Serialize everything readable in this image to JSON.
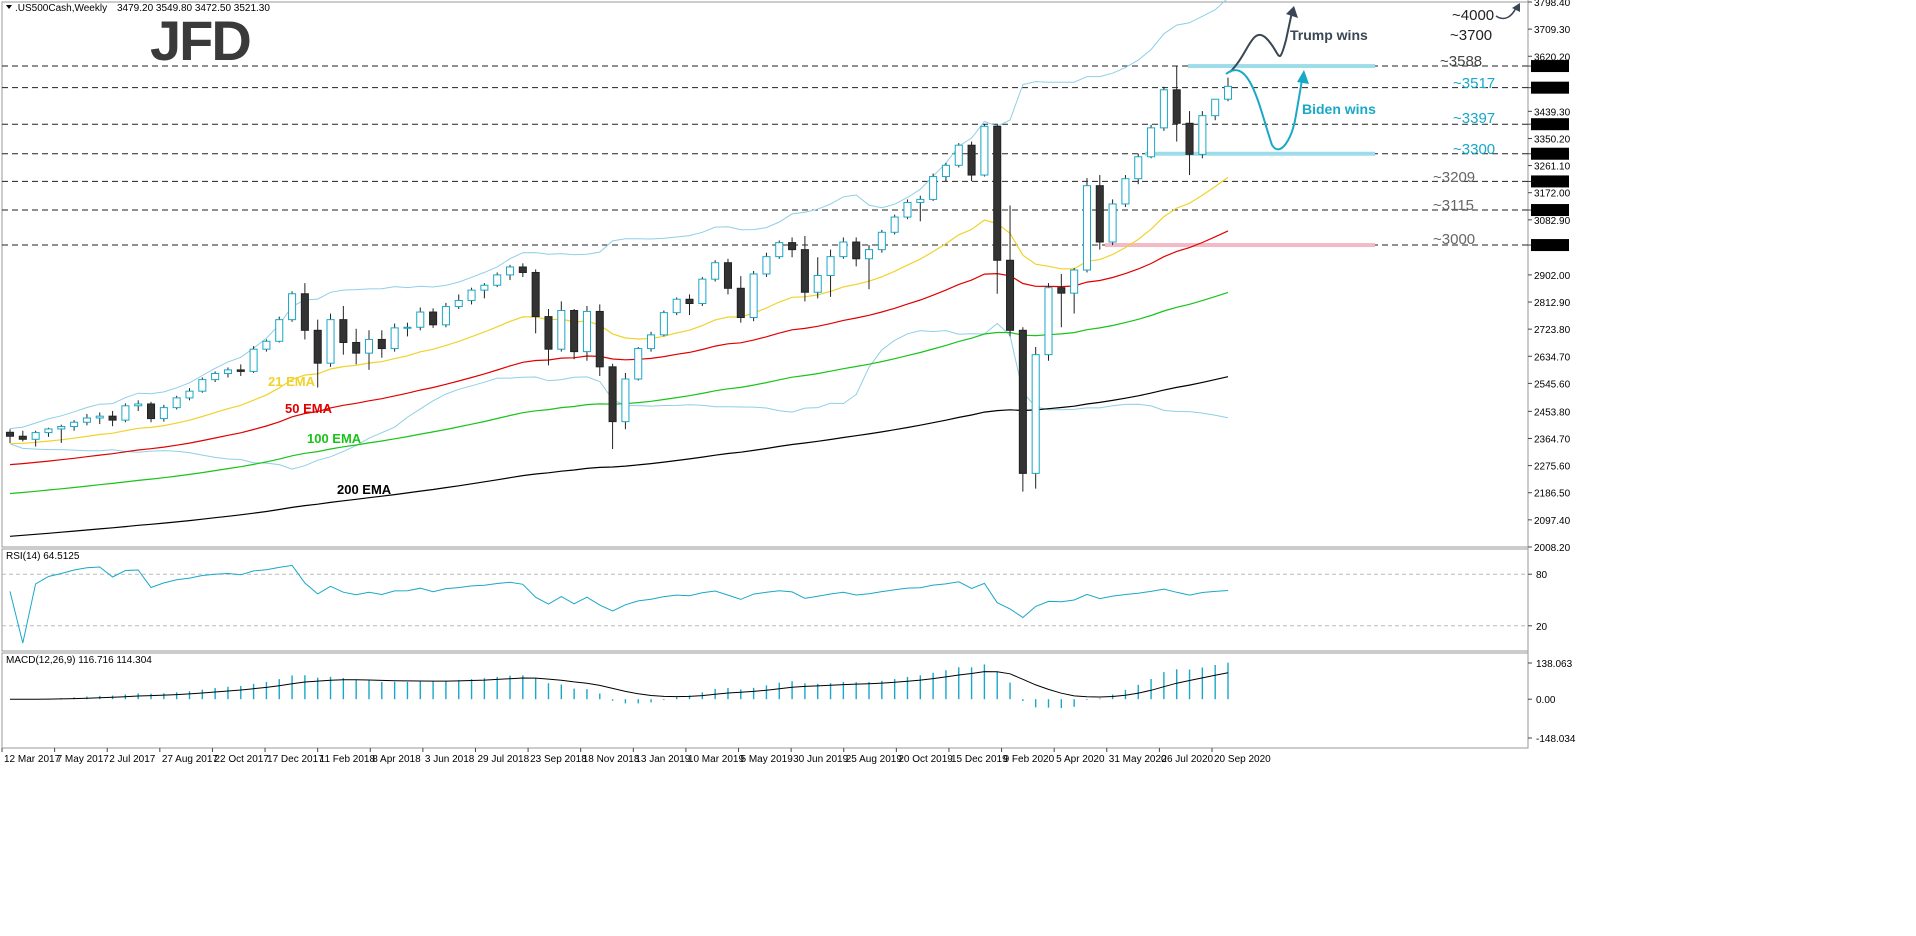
{
  "header": {
    "symbol": ".US500Cash,Weekly",
    "ohlc": "3479.20 3549.80 3472.50 3521.30"
  },
  "logo": "JFD",
  "chart_data": [
    {
      "type": "candlestick",
      "panel": "price",
      "title": ".US500Cash,Weekly",
      "ylim": [
        2008.2,
        3798.4
      ],
      "y_ticks": [
        "3798.40",
        "3709.30",
        "3620.20",
        "3588.00",
        "3517.00",
        "3439.30",
        "3397.00",
        "3350.20",
        "3300.00",
        "3261.10",
        "3209.00",
        "3172.00",
        "3115.00",
        "3082.90",
        "3000.00",
        "2902.00",
        "2812.90",
        "2723.80",
        "2634.70",
        "2545.60",
        "2453.80",
        "2364.70",
        "2275.60",
        "2186.50",
        "2097.40",
        "2008.20"
      ],
      "highlighted_ticks": [
        "3588.00",
        "3517.00",
        "3397.00",
        "3300.00",
        "3209.00",
        "3115.00",
        "3000.00"
      ],
      "x_labels": [
        "12 Mar 2017",
        "7 May 2017",
        "2 Jul 2017",
        "27 Aug 2017",
        "22 Oct 2017",
        "17 Dec 2017",
        "11 Feb 2018",
        "8 Apr 2018",
        "3 Jun 2018",
        "29 Jul 2018",
        "23 Sep 2018",
        "18 Nov 2018",
        "13 Jan 2019",
        "10 Mar 2019",
        "5 May 2019",
        "30 Jun 2019",
        "25 Aug 2019",
        "20 Oct 2019",
        "15 Dec 2019",
        "9 Feb 2020",
        "5 Apr 2020",
        "31 May 2020",
        "26 Jul 2020",
        "20 Sep 2020"
      ],
      "levels": [
        {
          "label": "~4000",
          "value": 3798,
          "color": "#222222"
        },
        {
          "label": "~3700",
          "value": 3700,
          "color": "#222222"
        },
        {
          "label": "~3588",
          "value": 3588,
          "color": "#444444"
        },
        {
          "label": "~3517",
          "value": 3517,
          "color": "#18a8c8"
        },
        {
          "label": "~3397",
          "value": 3397,
          "color": "#18a8c8"
        },
        {
          "label": "~3300",
          "value": 3300,
          "color": "#18a8c8"
        },
        {
          "label": "~3209",
          "value": 3209,
          "color": "#666666"
        },
        {
          "label": "~3115",
          "value": 3115,
          "color": "#666666"
        },
        {
          "label": "~3000",
          "value": 3000,
          "color": "#666666"
        }
      ],
      "candles": [
        {
          "x": "2017-03-12",
          "o": 2385,
          "h": 2395,
          "l": 2350,
          "c": 2372
        },
        {
          "x": "2017-03-26",
          "o": 2372,
          "h": 2390,
          "l": 2355,
          "c": 2362
        },
        {
          "x": "2017-04-09",
          "o": 2362,
          "h": 2390,
          "l": 2338,
          "c": 2384
        },
        {
          "x": "2017-04-23",
          "o": 2384,
          "h": 2400,
          "l": 2370,
          "c": 2396
        },
        {
          "x": "2017-05-07",
          "o": 2396,
          "h": 2410,
          "l": 2350,
          "c": 2404
        },
        {
          "x": "2017-05-21",
          "o": 2404,
          "h": 2425,
          "l": 2390,
          "c": 2418
        },
        {
          "x": "2017-06-04",
          "o": 2418,
          "h": 2445,
          "l": 2408,
          "c": 2432
        },
        {
          "x": "2017-06-18",
          "o": 2432,
          "h": 2450,
          "l": 2412,
          "c": 2438
        },
        {
          "x": "2017-07-02",
          "o": 2438,
          "h": 2455,
          "l": 2405,
          "c": 2425
        },
        {
          "x": "2017-07-16",
          "o": 2425,
          "h": 2480,
          "l": 2418,
          "c": 2472
        },
        {
          "x": "2017-07-30",
          "o": 2472,
          "h": 2490,
          "l": 2455,
          "c": 2478
        },
        {
          "x": "2017-08-13",
          "o": 2478,
          "h": 2485,
          "l": 2418,
          "c": 2430
        },
        {
          "x": "2017-08-27",
          "o": 2430,
          "h": 2475,
          "l": 2420,
          "c": 2466
        },
        {
          "x": "2017-09-10",
          "o": 2466,
          "h": 2505,
          "l": 2460,
          "c": 2498
        },
        {
          "x": "2017-09-24",
          "o": 2498,
          "h": 2530,
          "l": 2490,
          "c": 2520
        },
        {
          "x": "2017-10-08",
          "o": 2520,
          "h": 2565,
          "l": 2515,
          "c": 2558
        },
        {
          "x": "2017-10-22",
          "o": 2558,
          "h": 2585,
          "l": 2550,
          "c": 2578
        },
        {
          "x": "2017-11-05",
          "o": 2578,
          "h": 2598,
          "l": 2565,
          "c": 2590
        },
        {
          "x": "2017-11-19",
          "o": 2590,
          "h": 2608,
          "l": 2570,
          "c": 2585
        },
        {
          "x": "2017-12-03",
          "o": 2585,
          "h": 2668,
          "l": 2580,
          "c": 2658
        },
        {
          "x": "2017-12-17",
          "o": 2658,
          "h": 2690,
          "l": 2650,
          "c": 2684
        },
        {
          "x": "2017-12-31",
          "o": 2684,
          "h": 2765,
          "l": 2680,
          "c": 2755
        },
        {
          "x": "2018-01-14",
          "o": 2755,
          "h": 2848,
          "l": 2748,
          "c": 2840
        },
        {
          "x": "2018-01-28",
          "o": 2840,
          "h": 2875,
          "l": 2690,
          "c": 2720
        },
        {
          "x": "2018-02-11",
          "o": 2720,
          "h": 2755,
          "l": 2532,
          "c": 2612
        },
        {
          "x": "2018-02-25",
          "o": 2612,
          "h": 2775,
          "l": 2600,
          "c": 2755
        },
        {
          "x": "2018-03-11",
          "o": 2755,
          "h": 2800,
          "l": 2640,
          "c": 2680
        },
        {
          "x": "2018-03-25",
          "o": 2680,
          "h": 2725,
          "l": 2608,
          "c": 2645
        },
        {
          "x": "2018-04-08",
          "o": 2645,
          "h": 2720,
          "l": 2590,
          "c": 2690
        },
        {
          "x": "2018-04-22",
          "o": 2690,
          "h": 2720,
          "l": 2630,
          "c": 2660
        },
        {
          "x": "2018-05-06",
          "o": 2660,
          "h": 2742,
          "l": 2650,
          "c": 2728
        },
        {
          "x": "2018-05-20",
          "o": 2728,
          "h": 2745,
          "l": 2700,
          "c": 2730
        },
        {
          "x": "2018-06-03",
          "o": 2730,
          "h": 2795,
          "l": 2720,
          "c": 2780
        },
        {
          "x": "2018-06-17",
          "o": 2780,
          "h": 2792,
          "l": 2728,
          "c": 2738
        },
        {
          "x": "2018-07-01",
          "o": 2738,
          "h": 2810,
          "l": 2730,
          "c": 2798
        },
        {
          "x": "2018-07-15",
          "o": 2798,
          "h": 2838,
          "l": 2790,
          "c": 2818
        },
        {
          "x": "2018-07-29",
          "o": 2818,
          "h": 2860,
          "l": 2805,
          "c": 2852
        },
        {
          "x": "2018-08-12",
          "o": 2852,
          "h": 2875,
          "l": 2825,
          "c": 2868
        },
        {
          "x": "2018-08-26",
          "o": 2868,
          "h": 2910,
          "l": 2862,
          "c": 2902
        },
        {
          "x": "2018-09-09",
          "o": 2902,
          "h": 2935,
          "l": 2885,
          "c": 2928
        },
        {
          "x": "2018-09-23",
          "o": 2928,
          "h": 2940,
          "l": 2895,
          "c": 2910
        },
        {
          "x": "2018-10-07",
          "o": 2910,
          "h": 2920,
          "l": 2710,
          "c": 2765
        },
        {
          "x": "2018-10-21",
          "o": 2765,
          "h": 2790,
          "l": 2605,
          "c": 2658
        },
        {
          "x": "2018-11-04",
          "o": 2658,
          "h": 2815,
          "l": 2650,
          "c": 2785
        },
        {
          "x": "2018-11-18",
          "o": 2785,
          "h": 2790,
          "l": 2625,
          "c": 2650
        },
        {
          "x": "2018-12-02",
          "o": 2650,
          "h": 2800,
          "l": 2620,
          "c": 2782
        },
        {
          "x": "2018-12-16",
          "o": 2782,
          "h": 2805,
          "l": 2570,
          "c": 2600
        },
        {
          "x": "2018-12-30",
          "o": 2600,
          "h": 2610,
          "l": 2330,
          "c": 2420
        },
        {
          "x": "2019-01-13",
          "o": 2420,
          "h": 2580,
          "l": 2395,
          "c": 2560
        },
        {
          "x": "2019-01-27",
          "o": 2560,
          "h": 2665,
          "l": 2555,
          "c": 2660
        },
        {
          "x": "2019-02-10",
          "o": 2660,
          "h": 2715,
          "l": 2650,
          "c": 2705
        },
        {
          "x": "2019-02-24",
          "o": 2705,
          "h": 2785,
          "l": 2700,
          "c": 2778
        },
        {
          "x": "2019-03-10",
          "o": 2778,
          "h": 2828,
          "l": 2770,
          "c": 2822
        },
        {
          "x": "2019-03-24",
          "o": 2822,
          "h": 2838,
          "l": 2770,
          "c": 2808
        },
        {
          "x": "2019-04-07",
          "o": 2808,
          "h": 2895,
          "l": 2800,
          "c": 2888
        },
        {
          "x": "2019-04-21",
          "o": 2888,
          "h": 2950,
          "l": 2880,
          "c": 2942
        },
        {
          "x": "2019-05-05",
          "o": 2942,
          "h": 2955,
          "l": 2838,
          "c": 2858
        },
        {
          "x": "2019-05-19",
          "o": 2858,
          "h": 2898,
          "l": 2745,
          "c": 2762
        },
        {
          "x": "2019-06-02",
          "o": 2762,
          "h": 2915,
          "l": 2750,
          "c": 2905
        },
        {
          "x": "2019-06-16",
          "o": 2905,
          "h": 2975,
          "l": 2895,
          "c": 2962
        },
        {
          "x": "2019-06-30",
          "o": 2962,
          "h": 3015,
          "l": 2955,
          "c": 3008
        },
        {
          "x": "2019-07-14",
          "o": 3008,
          "h": 3025,
          "l": 2960,
          "c": 2985
        },
        {
          "x": "2019-07-28",
          "o": 2985,
          "h": 3030,
          "l": 2815,
          "c": 2845
        },
        {
          "x": "2019-08-11",
          "o": 2845,
          "h": 2960,
          "l": 2825,
          "c": 2900
        },
        {
          "x": "2019-08-25",
          "o": 2900,
          "h": 2985,
          "l": 2830,
          "c": 2962
        },
        {
          "x": "2019-09-08",
          "o": 2962,
          "h": 3025,
          "l": 2955,
          "c": 3010
        },
        {
          "x": "2019-09-22",
          "o": 3010,
          "h": 3025,
          "l": 2930,
          "c": 2955
        },
        {
          "x": "2019-10-06",
          "o": 2955,
          "h": 3000,
          "l": 2855,
          "c": 2985
        },
        {
          "x": "2019-10-20",
          "o": 2985,
          "h": 3050,
          "l": 2975,
          "c": 3042
        },
        {
          "x": "2019-11-03",
          "o": 3042,
          "h": 3100,
          "l": 3035,
          "c": 3092
        },
        {
          "x": "2019-11-17",
          "o": 3092,
          "h": 3150,
          "l": 3085,
          "c": 3140
        },
        {
          "x": "2019-12-01",
          "o": 3140,
          "h": 3162,
          "l": 3078,
          "c": 3150
        },
        {
          "x": "2019-12-15",
          "o": 3150,
          "h": 3235,
          "l": 3145,
          "c": 3225
        },
        {
          "x": "2019-12-29",
          "o": 3225,
          "h": 3270,
          "l": 3210,
          "c": 3262
        },
        {
          "x": "2020-01-12",
          "o": 3262,
          "h": 3335,
          "l": 3255,
          "c": 3328
        },
        {
          "x": "2020-01-26",
          "o": 3328,
          "h": 3340,
          "l": 3210,
          "c": 3230
        },
        {
          "x": "2020-02-09",
          "o": 3230,
          "h": 3398,
          "l": 3225,
          "c": 3390
        },
        {
          "x": "2020-02-23",
          "o": 3390,
          "h": 3395,
          "l": 2840,
          "c": 2950
        },
        {
          "x": "2020-03-08",
          "o": 2950,
          "h": 3130,
          "l": 2700,
          "c": 2720
        },
        {
          "x": "2020-03-22",
          "o": 2720,
          "h": 2730,
          "l": 2190,
          "c": 2250
        },
        {
          "x": "2020-04-05",
          "o": 2250,
          "h": 2665,
          "l": 2200,
          "c": 2640
        },
        {
          "x": "2020-04-19",
          "o": 2640,
          "h": 2875,
          "l": 2620,
          "c": 2860
        },
        {
          "x": "2020-05-03",
          "o": 2860,
          "h": 2905,
          "l": 2730,
          "c": 2842
        },
        {
          "x": "2020-05-17",
          "o": 2842,
          "h": 2925,
          "l": 2775,
          "c": 2918
        },
        {
          "x": "2020-05-31",
          "o": 2918,
          "h": 3220,
          "l": 2910,
          "c": 3195
        },
        {
          "x": "2020-06-14",
          "o": 3195,
          "h": 3230,
          "l": 2985,
          "c": 3010
        },
        {
          "x": "2020-06-28",
          "o": 3010,
          "h": 3150,
          "l": 3000,
          "c": 3135
        },
        {
          "x": "2020-07-12",
          "o": 3135,
          "h": 3230,
          "l": 3125,
          "c": 3218
        },
        {
          "x": "2020-07-26",
          "o": 3218,
          "h": 3300,
          "l": 3200,
          "c": 3290
        },
        {
          "x": "2020-08-09",
          "o": 3290,
          "h": 3395,
          "l": 3285,
          "c": 3385
        },
        {
          "x": "2020-08-23",
          "o": 3385,
          "h": 3520,
          "l": 3375,
          "c": 3510
        },
        {
          "x": "2020-09-06",
          "o": 3510,
          "h": 3588,
          "l": 3340,
          "c": 3400
        },
        {
          "x": "2020-09-20",
          "o": 3400,
          "h": 3440,
          "l": 3230,
          "c": 3298
        },
        {
          "x": "2020-10-04",
          "o": 3298,
          "h": 3440,
          "l": 3285,
          "c": 3425
        },
        {
          "x": "2020-10-18",
          "o": 3425,
          "h": 3480,
          "l": 3410,
          "c": 3479
        },
        {
          "x": "2020-11-01",
          "o": 3479.2,
          "h": 3549.8,
          "l": 3472.5,
          "c": 3521.3
        }
      ],
      "ema_labels": [
        {
          "name": "21 EMA",
          "color": "#f0d22a"
        },
        {
          "name": "50 EMA",
          "color": "#e00000"
        },
        {
          "name": "100 EMA",
          "color": "#19c319"
        },
        {
          "name": "200 EMA",
          "color": "#000000"
        }
      ],
      "scenarios": [
        {
          "label": "Trump wins",
          "color": "#3a4654"
        },
        {
          "label": "Biden wins",
          "color": "#18a8c8"
        }
      ]
    },
    {
      "type": "line",
      "panel": "rsi",
      "title": "RSI(14) 64.5125",
      "ylim": [
        0,
        100
      ],
      "y_ticks": [
        "80",
        "20"
      ],
      "series": [
        {
          "name": "RSI(14)",
          "color": "#18a8c8"
        }
      ]
    },
    {
      "type": "bar",
      "panel": "macd",
      "title": "MACD(12,26,9) 116.716 114.304",
      "ylim": [
        -148.034,
        138.063
      ],
      "y_ticks": [
        "138.063",
        "0.00",
        "-148.034"
      ],
      "series": [
        {
          "name": "MACD histogram",
          "color": "#18a8c8"
        },
        {
          "name": "Signal",
          "color": "#000000"
        }
      ]
    }
  ]
}
